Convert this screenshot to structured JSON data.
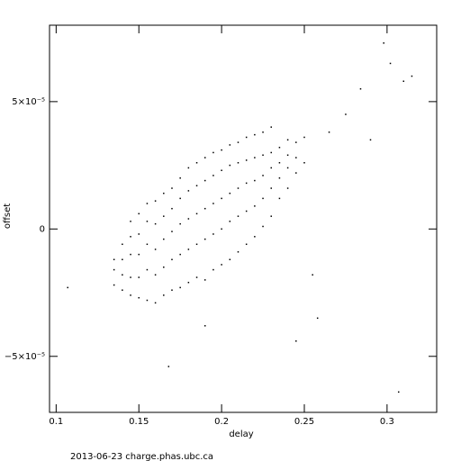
{
  "chart_data": {
    "type": "scatter",
    "xlabel": "delay",
    "ylabel": "offset",
    "footer": "2013-06-23 charge.phas.ubc.ca",
    "color": "#000000",
    "xlim": [
      0.096,
      0.33
    ],
    "ylim": [
      -7.2e-05,
      8e-05
    ],
    "xticks": [
      0.1,
      0.15,
      0.2,
      0.25,
      0.3
    ],
    "yticks": [
      {
        "value": -5e-05,
        "label": "−5×10⁻⁵"
      },
      0,
      {
        "value": 5e-05,
        "label": "5×10⁻⁵"
      }
    ],
    "x": [
      0.135,
      0.135,
      0.135,
      0.14,
      0.14,
      0.14,
      0.14,
      0.145,
      0.145,
      0.145,
      0.145,
      0.145,
      0.15,
      0.15,
      0.15,
      0.15,
      0.15,
      0.155,
      0.155,
      0.155,
      0.155,
      0.155,
      0.16,
      0.16,
      0.16,
      0.16,
      0.16,
      0.165,
      0.165,
      0.165,
      0.165,
      0.165,
      0.17,
      0.17,
      0.17,
      0.17,
      0.17,
      0.175,
      0.175,
      0.175,
      0.175,
      0.175,
      0.18,
      0.18,
      0.18,
      0.18,
      0.18,
      0.185,
      0.185,
      0.185,
      0.185,
      0.185,
      0.19,
      0.19,
      0.19,
      0.19,
      0.19,
      0.195,
      0.195,
      0.195,
      0.195,
      0.195,
      0.2,
      0.2,
      0.2,
      0.2,
      0.2,
      0.205,
      0.205,
      0.205,
      0.205,
      0.205,
      0.21,
      0.21,
      0.21,
      0.21,
      0.21,
      0.215,
      0.215,
      0.215,
      0.215,
      0.215,
      0.22,
      0.22,
      0.22,
      0.22,
      0.22,
      0.225,
      0.225,
      0.225,
      0.225,
      0.225,
      0.23,
      0.23,
      0.23,
      0.23,
      0.23,
      0.235,
      0.235,
      0.235,
      0.235,
      0.24,
      0.24,
      0.24,
      0.24,
      0.245,
      0.245,
      0.245,
      0.25,
      0.25,
      0.107,
      0.298,
      0.302,
      0.31,
      0.315,
      0.307,
      0.168,
      0.258,
      0.245,
      0.284,
      0.275,
      0.29,
      0.265,
      0.255,
      0.19
    ],
    "values": [
      -2.2e-05,
      -1.6e-05,
      -1.2e-05,
      -2.4e-05,
      -1.8e-05,
      -1.2e-05,
      -6e-06,
      -2.6e-05,
      -1.9e-05,
      -1e-05,
      -3e-06,
      3e-06,
      -2.7e-05,
      -1.9e-05,
      -1e-05,
      -2e-06,
      6e-06,
      -2.8e-05,
      -1.6e-05,
      -6e-06,
      3e-06,
      1e-05,
      -2.9e-05,
      -1.8e-05,
      -8e-06,
      2e-06,
      1.1e-05,
      -2.6e-05,
      -1.5e-05,
      -4e-06,
      5e-06,
      1.4e-05,
      -2.4e-05,
      -1.2e-05,
      -1e-06,
      8e-06,
      1.6e-05,
      -2.3e-05,
      -1e-05,
      2e-06,
      1.2e-05,
      2e-05,
      -2.1e-05,
      -8e-06,
      4e-06,
      1.5e-05,
      2.4e-05,
      -1.9e-05,
      -6e-06,
      6e-06,
      1.7e-05,
      2.6e-05,
      -2e-05,
      -4e-06,
      8e-06,
      1.9e-05,
      2.8e-05,
      -1.6e-05,
      -2e-06,
      1e-05,
      2.1e-05,
      3e-05,
      -1.4e-05,
      0,
      1.2e-05,
      2.3e-05,
      3.1e-05,
      -1.2e-05,
      3e-06,
      1.4e-05,
      2.5e-05,
      3.3e-05,
      -9e-06,
      5e-06,
      1.6e-05,
      2.6e-05,
      3.4e-05,
      -6e-06,
      7e-06,
      1.8e-05,
      2.7e-05,
      3.6e-05,
      -3e-06,
      9e-06,
      1.9e-05,
      2.8e-05,
      3.7e-05,
      1e-06,
      1.2e-05,
      2.1e-05,
      2.9e-05,
      3.8e-05,
      5e-06,
      1.6e-05,
      2.4e-05,
      3e-05,
      4e-05,
      1.2e-05,
      2e-05,
      2.6e-05,
      3.2e-05,
      1.6e-05,
      2.4e-05,
      2.9e-05,
      3.5e-05,
      2.2e-05,
      2.8e-05,
      3.4e-05,
      2.6e-05,
      3.6e-05,
      -2.3e-05,
      7.3e-05,
      6.5e-05,
      5.8e-05,
      6e-05,
      -6.4e-05,
      -5.4e-05,
      -3.5e-05,
      -4.4e-05,
      5.5e-05,
      4.5e-05,
      3.5e-05,
      3.8e-05,
      -1.8e-05,
      -3.8e-05
    ]
  }
}
